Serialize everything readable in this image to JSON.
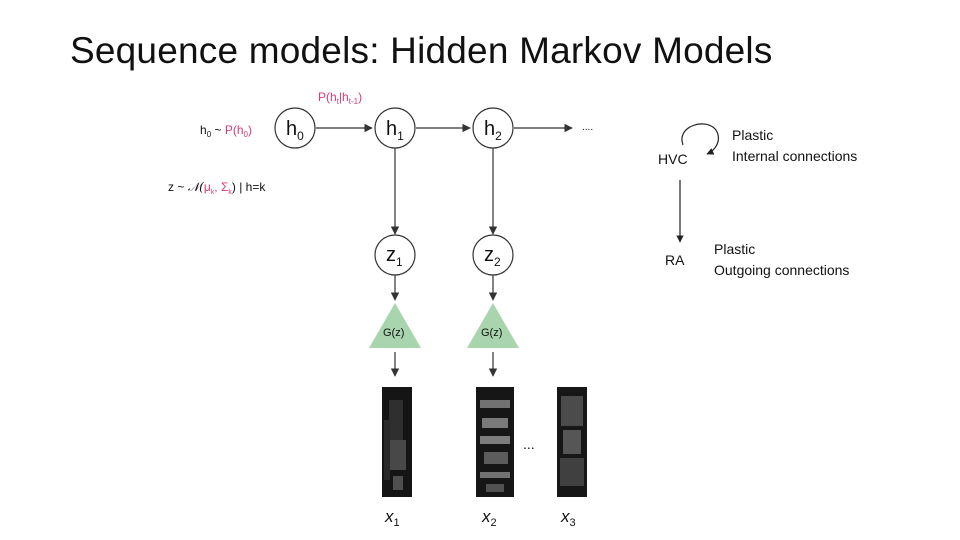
{
  "slide": {
    "title": "Sequence models: Hidden Markov Models"
  },
  "hmm": {
    "hidden_nodes": [
      {
        "base": "h",
        "sub": "0"
      },
      {
        "base": "h",
        "sub": "1"
      },
      {
        "base": "h",
        "sub": "2"
      }
    ],
    "latent_nodes": [
      {
        "base": "z",
        "sub": "1"
      },
      {
        "base": "z",
        "sub": "2"
      }
    ],
    "generator_label": "G(z)",
    "continuation": "....",
    "transition_label": {
      "prefix": "P(h",
      "sub1": "t",
      "mid": "|h",
      "sub2": "t-1",
      "suffix": ")"
    },
    "prior_label": {
      "h": "h",
      "h_sub": "0",
      "tilde": " ~ ",
      "p": "P(h",
      "p_sub": "0",
      "p_close": ")"
    },
    "emission_label": {
      "z": "z ~ ",
      "normal": "𝒩(",
      "mu": "μ",
      "mu_sub": "k",
      "comma": ", ",
      "sigma": "Σ",
      "sigma_sub": "k",
      "close": ") | h=k"
    },
    "outputs": [
      {
        "base": "x",
        "sub": "1"
      },
      {
        "base": "x",
        "sub": "2"
      },
      {
        "base": "x",
        "sub": "3"
      }
    ],
    "outputs_ellipsis": "..."
  },
  "circuit": {
    "hvc": "HVC",
    "ra": "RA",
    "hvc_note_line1": "Plastic",
    "hvc_note_line2": "Internal connections",
    "ra_note_line1": "Plastic",
    "ra_note_line2": "Outgoing connections"
  },
  "colors": {
    "accent_pink": "#d63c78",
    "generator_green": "#a8d4ae",
    "text": "#111111"
  }
}
